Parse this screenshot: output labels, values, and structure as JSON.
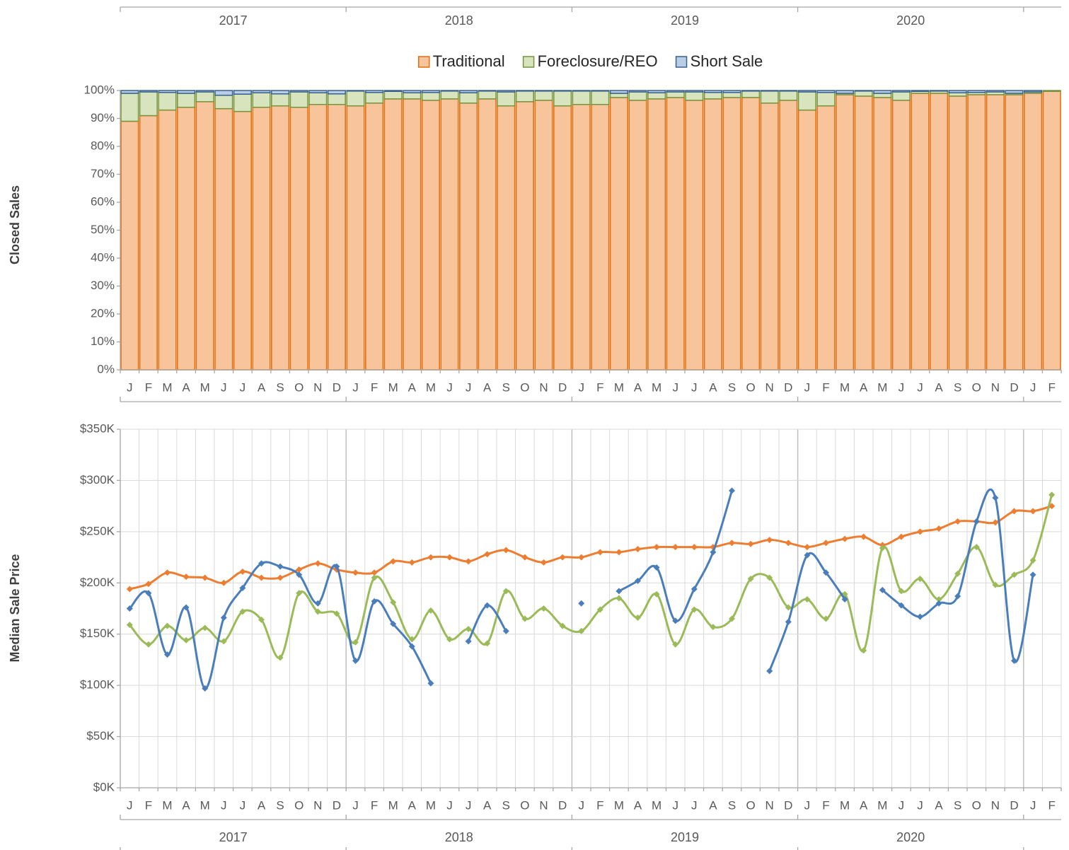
{
  "chart_data": [
    {
      "type": "bar",
      "stacked": true,
      "ylabel": "Closed Sales",
      "groups": [
        "2017",
        "2018",
        "2019",
        "2020"
      ],
      "categories": [
        "J",
        "F",
        "M",
        "A",
        "M",
        "J",
        "J",
        "A",
        "S",
        "O",
        "N",
        "D",
        "J",
        "F",
        "M",
        "A",
        "M",
        "J",
        "J",
        "A",
        "S",
        "O",
        "N",
        "D",
        "J",
        "F",
        "M",
        "A",
        "M",
        "J",
        "J",
        "A",
        "S",
        "O",
        "N",
        "D",
        "J",
        "F",
        "M",
        "A",
        "M",
        "J",
        "J",
        "A",
        "S",
        "O",
        "N",
        "D",
        "J",
        "F"
      ],
      "ylim": [
        0,
        100
      ],
      "yticks": [
        {
          "value": 0,
          "label": "0%"
        },
        {
          "value": 10,
          "label": "10%"
        },
        {
          "value": 20,
          "label": "20%"
        },
        {
          "value": 30,
          "label": "30%"
        },
        {
          "value": 40,
          "label": "40%"
        },
        {
          "value": 50,
          "label": "50%"
        },
        {
          "value": 60,
          "label": "60%"
        },
        {
          "value": 70,
          "label": "70%"
        },
        {
          "value": 80,
          "label": "80%"
        },
        {
          "value": 90,
          "label": "90%"
        },
        {
          "value": 100,
          "label": "100%"
        }
      ],
      "legend": "top",
      "series": [
        {
          "name": "Traditional",
          "color": "#f8c49c",
          "stroke": "#e46c0a",
          "values": [
            89,
            91,
            93,
            94,
            96,
            93.5,
            92.5,
            94,
            94.5,
            94,
            95,
            95,
            94.5,
            95.5,
            97,
            97,
            96.5,
            97,
            95.5,
            97,
            94.5,
            96,
            96.5,
            94.5,
            95,
            95,
            97.5,
            96.5,
            97,
            97.5,
            96.5,
            97,
            97.5,
            97.5,
            95.5,
            96.5,
            93,
            94.5,
            98.5,
            98,
            97.5,
            96.5,
            99,
            99,
            98,
            98.5,
            98.5,
            98.5,
            99,
            99.7
          ]
        },
        {
          "name": "Foreclosure/REO",
          "color": "#d7e4bd",
          "stroke": "#77933c",
          "values": [
            10,
            8.5,
            6.3,
            5,
            3.5,
            4.8,
            6.2,
            5.2,
            4.3,
            5.5,
            4.2,
            3.8,
            5.3,
            3.8,
            2.7,
            2.2,
            2.8,
            2.8,
            3.7,
            2.8,
            5,
            3.8,
            3.3,
            5.3,
            4.8,
            4.8,
            1.5,
            3,
            2.2,
            2,
            3,
            2.3,
            1.8,
            2.3,
            4.3,
            3.3,
            6.5,
            4.8,
            0.5,
            1.8,
            1.5,
            3,
            0.7,
            0.8,
            1.2,
            0.8,
            1,
            0.5,
            0.5,
            0.3
          ]
        },
        {
          "name": "Short Sale",
          "color": "#b9cde5",
          "stroke": "#376092",
          "values": [
            1,
            0.5,
            0.7,
            1,
            0.5,
            1.7,
            1.3,
            0.8,
            1.2,
            0.5,
            0.8,
            1.2,
            0.2,
            0.7,
            0.3,
            0.8,
            0.7,
            0.2,
            0.8,
            0.2,
            0.5,
            0.2,
            0.2,
            0.2,
            0.2,
            0.2,
            1,
            0.5,
            0.8,
            0.5,
            0.5,
            0.7,
            0.7,
            0.2,
            0.2,
            0.2,
            0.5,
            0.7,
            1,
            0.2,
            1,
            0.5,
            0.3,
            0.2,
            0.8,
            0.7,
            0.5,
            1,
            0.5,
            0
          ]
        }
      ]
    },
    {
      "type": "line",
      "smooth": true,
      "grid": true,
      "ylabel": "Median Sale Price",
      "groups": [
        "2017",
        "2018",
        "2019",
        "2020"
      ],
      "categories": [
        "J",
        "F",
        "M",
        "A",
        "M",
        "J",
        "J",
        "A",
        "S",
        "O",
        "N",
        "D",
        "J",
        "F",
        "M",
        "A",
        "M",
        "J",
        "J",
        "A",
        "S",
        "O",
        "N",
        "D",
        "J",
        "F",
        "M",
        "A",
        "M",
        "J",
        "J",
        "A",
        "S",
        "O",
        "N",
        "D",
        "J",
        "F",
        "M",
        "A",
        "M",
        "J",
        "J",
        "A",
        "S",
        "O",
        "N",
        "D",
        "J",
        "F"
      ],
      "ylim": [
        0,
        350000
      ],
      "yticks": [
        {
          "value": 0,
          "label": "$0K"
        },
        {
          "value": 50000,
          "label": "$50K"
        },
        {
          "value": 100000,
          "label": "$100K"
        },
        {
          "value": 150000,
          "label": "$150K"
        },
        {
          "value": 200000,
          "label": "$200K"
        },
        {
          "value": 250000,
          "label": "$250K"
        },
        {
          "value": 300000,
          "label": "$300K"
        },
        {
          "value": 350000,
          "label": "$350K"
        }
      ],
      "series": [
        {
          "color": "#ed7d31",
          "values": [
            194000,
            199000,
            210000,
            206000,
            205000,
            200000,
            211000,
            205000,
            205000,
            213000,
            219000,
            213000,
            210000,
            210000,
            221000,
            220000,
            225000,
            225000,
            221000,
            228000,
            232000,
            225000,
            220000,
            225000,
            225000,
            230000,
            230000,
            233000,
            235000,
            235000,
            235000,
            235000,
            239000,
            238000,
            242000,
            239000,
            235000,
            239000,
            243000,
            245000,
            237000,
            245000,
            250000,
            253000,
            260000,
            260000,
            259000,
            270000,
            270000,
            275000
          ]
        },
        {
          "color": "#9bbb59",
          "values": [
            159000,
            140000,
            158000,
            144000,
            156000,
            143000,
            172000,
            164000,
            127000,
            190000,
            172000,
            170000,
            142000,
            205000,
            181000,
            145000,
            173000,
            145000,
            155000,
            141000,
            192000,
            165000,
            175000,
            158000,
            153000,
            174000,
            185000,
            166000,
            189000,
            140000,
            174000,
            157000,
            165000,
            204000,
            205000,
            176000,
            184000,
            165000,
            189000,
            134000,
            234000,
            192000,
            204000,
            184000,
            209000,
            235000,
            198000,
            208000,
            222000,
            286000
          ]
        },
        {
          "color": "#4a7ebb",
          "values": [
            175000,
            190000,
            130000,
            176000,
            97000,
            166000,
            195000,
            219000,
            216000,
            208000,
            180000,
            216000,
            124000,
            182000,
            160000,
            138000,
            102000,
            null,
            143000,
            178000,
            153000,
            null,
            null,
            null,
            180000,
            null,
            192000,
            202000,
            215000,
            163000,
            194000,
            230000,
            290000,
            null,
            114000,
            162000,
            227000,
            210000,
            184000,
            null,
            193000,
            178000,
            167000,
            180000,
            187000,
            260000,
            283000,
            124000,
            208000,
            null
          ]
        }
      ]
    }
  ]
}
